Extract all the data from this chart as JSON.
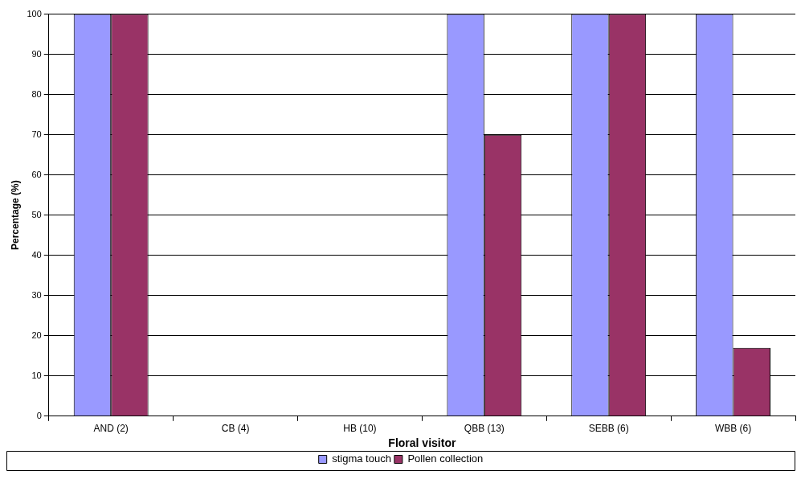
{
  "chart_data": {
    "type": "bar",
    "xlabel": "Floral visitor",
    "ylabel": "Percentage (%)",
    "categories": [
      "AND (2)",
      "CB (4)",
      "HB (10)",
      "QBB (13)",
      "SEBB (6)",
      "WBB (6)"
    ],
    "series": [
      {
        "name": "stigma touch",
        "color": "#9999ff",
        "values": [
          100,
          0,
          0,
          100,
          100,
          100
        ]
      },
      {
        "name": "Pollen collection",
        "color": "#993366",
        "values": [
          100,
          0,
          0,
          70,
          100,
          17
        ]
      }
    ],
    "ylim": [
      0,
      100
    ],
    "yticks": [
      0,
      10,
      20,
      30,
      40,
      50,
      60,
      70,
      80,
      90,
      100
    ],
    "grid": "y",
    "legend": "bottom"
  }
}
